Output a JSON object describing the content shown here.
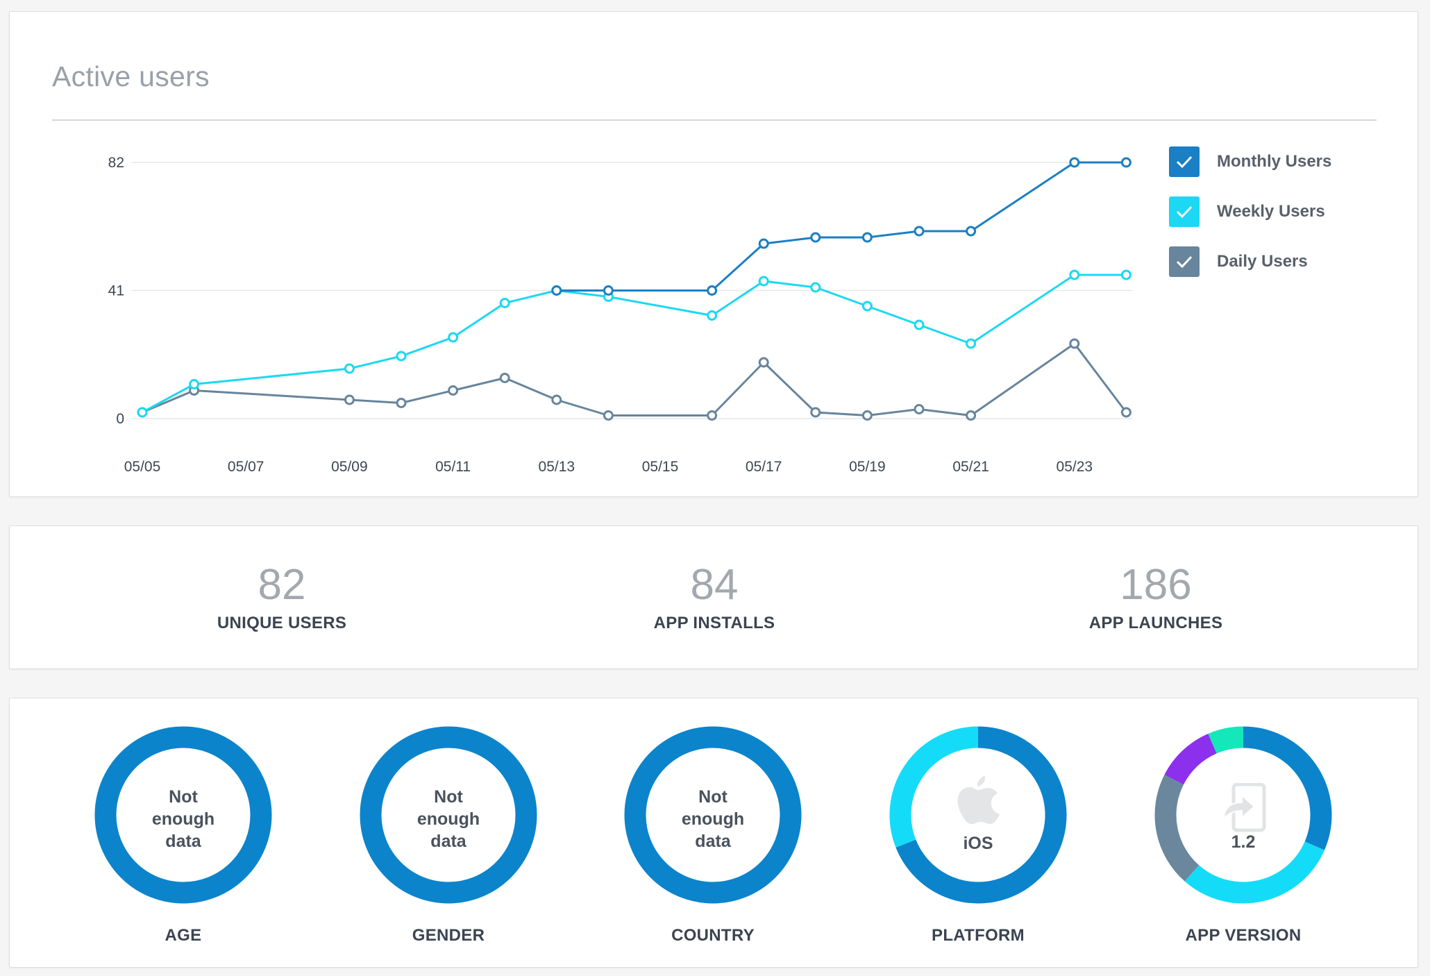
{
  "active_users": {
    "title": "Active users",
    "legend": [
      {
        "label": "Monthly Users",
        "color": "#1a7fc4",
        "checked": true
      },
      {
        "label": "Weekly Users",
        "color": "#1cd8f2",
        "checked": true
      },
      {
        "label": "Daily Users",
        "color": "#67859c",
        "checked": true
      }
    ]
  },
  "chart_data": {
    "type": "line",
    "x": [
      "05/05",
      "05/06",
      "05/09",
      "05/10",
      "05/11",
      "05/12",
      "05/13",
      "05/14",
      "05/16",
      "05/17",
      "05/18",
      "05/19",
      "05/20",
      "05/21",
      "05/23",
      "05/24"
    ],
    "x_ticks": [
      "05/05",
      "05/07",
      "05/09",
      "05/11",
      "05/13",
      "05/15",
      "05/17",
      "05/19",
      "05/21",
      "05/23"
    ],
    "y_ticks": [
      "0",
      "41",
      "82"
    ],
    "ylim": [
      0,
      82
    ],
    "grid": true,
    "legend_position": "right",
    "series": [
      {
        "name": "Monthly Users",
        "color": "#1a7fc4",
        "x": [
          "05/13",
          "05/14",
          "05/16",
          "05/17",
          "05/18",
          "05/19",
          "05/20",
          "05/21",
          "05/23",
          "05/24"
        ],
        "values": [
          41,
          41,
          41,
          56,
          58,
          58,
          60,
          60,
          82,
          82
        ]
      },
      {
        "name": "Weekly Users",
        "color": "#1cd8f2",
        "x": [
          "05/05",
          "05/06",
          "05/09",
          "05/10",
          "05/11",
          "05/12",
          "05/13",
          "05/14",
          "05/16",
          "05/17",
          "05/18",
          "05/19",
          "05/20",
          "05/21",
          "05/23",
          "05/24"
        ],
        "values": [
          2,
          11,
          16,
          20,
          26,
          37,
          41,
          39,
          33,
          44,
          42,
          36,
          30,
          24,
          46,
          46
        ]
      },
      {
        "name": "Daily Users",
        "color": "#67859c",
        "x": [
          "05/05",
          "05/06",
          "05/09",
          "05/10",
          "05/11",
          "05/12",
          "05/13",
          "05/14",
          "05/16",
          "05/17",
          "05/18",
          "05/19",
          "05/20",
          "05/21",
          "05/23",
          "05/24"
        ],
        "values": [
          2,
          9,
          6,
          5,
          9,
          13,
          6,
          1,
          1,
          18,
          2,
          1,
          3,
          1,
          24,
          2
        ]
      }
    ]
  },
  "stats": [
    {
      "value": "82",
      "label": "UNIQUE USERS"
    },
    {
      "value": "84",
      "label": "APP INSTALLS"
    },
    {
      "value": "186",
      "label": "APP LAUNCHES"
    }
  ],
  "breakdowns": [
    {
      "label": "AGE",
      "center_lines": [
        "Not",
        "enough",
        "data"
      ],
      "icon": "",
      "segments": [
        {
          "value": 1,
          "color": "#0b84cc"
        }
      ]
    },
    {
      "label": "GENDER",
      "center_lines": [
        "Not",
        "enough",
        "data"
      ],
      "icon": "",
      "segments": [
        {
          "value": 1,
          "color": "#0b84cc"
        }
      ]
    },
    {
      "label": "COUNTRY",
      "center_lines": [
        "Not",
        "enough",
        "data"
      ],
      "icon": "",
      "segments": [
        {
          "value": 1,
          "color": "#0b84cc"
        }
      ]
    },
    {
      "label": "PLATFORM",
      "center_lines": [
        "iOS"
      ],
      "icon": "apple-icon",
      "segments": [
        {
          "value": 0.69,
          "color": "#0b84cc"
        },
        {
          "value": 0.31,
          "color": "#14dcf8"
        }
      ]
    },
    {
      "label": "APP VERSION",
      "center_lines": [
        "1.2"
      ],
      "icon": "device-share-icon",
      "segments": [
        {
          "value": 0.315,
          "color": "#0b84cc"
        },
        {
          "value": 0.3,
          "color": "#14dcf8"
        },
        {
          "value": 0.21,
          "color": "#6a879e"
        },
        {
          "value": 0.11,
          "color": "#8c30ee"
        },
        {
          "value": 0.065,
          "color": "#14e8ba"
        }
      ]
    }
  ]
}
